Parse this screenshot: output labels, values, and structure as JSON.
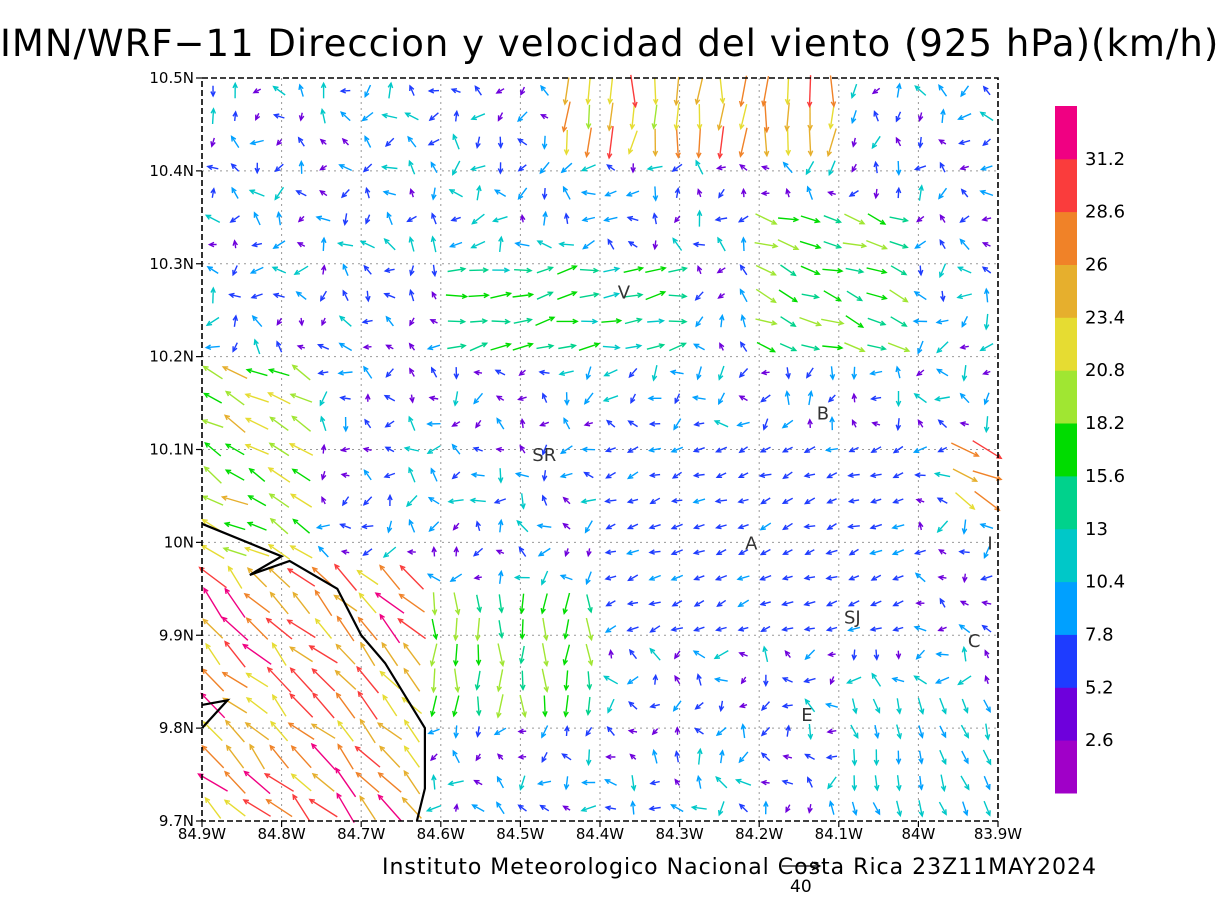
{
  "title": "IMN/WRF−11 Direccion y velocidad del viento (925 hPa)(km/h)",
  "footer": "Instituto Meteorologico Nacional Costa Rica  23Z11MAY2024",
  "reference_vector_label": "40",
  "map": {
    "lon_range": [
      -84.9,
      -83.9
    ],
    "lat_range": [
      9.7,
      10.5
    ],
    "lon_ticks": [
      {
        "value": -84.9,
        "label": "84.9W"
      },
      {
        "value": -84.8,
        "label": "84.8W"
      },
      {
        "value": -84.7,
        "label": "84.7W"
      },
      {
        "value": -84.6,
        "label": "84.6W"
      },
      {
        "value": -84.5,
        "label": "84.5W"
      },
      {
        "value": -84.4,
        "label": "84.4W"
      },
      {
        "value": -84.3,
        "label": "84.3W"
      },
      {
        "value": -84.2,
        "label": "84.2W"
      },
      {
        "value": -84.1,
        "label": "84.1W"
      },
      {
        "value": -84.0,
        "label": "84W"
      },
      {
        "value": -83.9,
        "label": "83.9W"
      }
    ],
    "lat_ticks": [
      {
        "value": 9.7,
        "label": "9.7N"
      },
      {
        "value": 9.8,
        "label": "9.8N"
      },
      {
        "value": 9.9,
        "label": "9.9N"
      },
      {
        "value": 10.0,
        "label": "10N"
      },
      {
        "value": 10.1,
        "label": "10.1N"
      },
      {
        "value": 10.2,
        "label": "10.2N"
      },
      {
        "value": 10.3,
        "label": "10.3N"
      },
      {
        "value": 10.4,
        "label": "10.4N"
      },
      {
        "value": 10.5,
        "label": "10.5N"
      }
    ],
    "places": [
      {
        "label": "V",
        "lon": -84.37,
        "lat": 10.27
      },
      {
        "label": "B",
        "lon": -84.12,
        "lat": 10.14
      },
      {
        "label": "SR",
        "lon": -84.47,
        "lat": 10.095
      },
      {
        "label": "A",
        "lon": -84.21,
        "lat": 10.0
      },
      {
        "label": "I",
        "lon": -83.91,
        "lat": 10.0
      },
      {
        "label": "SJ",
        "lon": -84.083,
        "lat": 9.92
      },
      {
        "label": "C",
        "lon": -83.93,
        "lat": 9.895
      },
      {
        "label": "E",
        "lon": -84.14,
        "lat": 9.815
      }
    ],
    "coastline": [
      [
        -84.9,
        10.02
      ],
      [
        -84.8,
        9.985
      ],
      [
        -84.84,
        9.965
      ],
      [
        -84.79,
        9.98
      ],
      [
        -84.73,
        9.95
      ],
      [
        -84.7,
        9.9
      ],
      [
        -84.67,
        9.87
      ],
      [
        -84.62,
        9.8
      ],
      [
        -84.62,
        9.735
      ],
      [
        -84.63,
        9.7
      ]
    ],
    "coastline_spur": [
      [
        -84.9,
        9.825
      ],
      [
        -84.868,
        9.83
      ],
      [
        -84.9,
        9.8
      ]
    ]
  },
  "colorbar": {
    "labels": [
      "2.6",
      "5.2",
      "7.8",
      "10.4",
      "13",
      "15.6",
      "18.2",
      "20.8",
      "23.4",
      "26",
      "28.6",
      "31.2"
    ],
    "colors": [
      "#a000c8",
      "#6e00dc",
      "#1e3cff",
      "#00a0ff",
      "#00c8c8",
      "#00d28c",
      "#00dc00",
      "#a0e632",
      "#e6dc32",
      "#e6af2d",
      "#f08228",
      "#fa3c3c",
      "#f00082"
    ]
  },
  "chart_data": {
    "type": "vector_field",
    "title": "IMN/WRF−11 Direccion y velocidad del viento (925 hPa)(km/h)",
    "units": "km/h",
    "level": "925 hPa",
    "xlim": [
      -84.9,
      -83.9
    ],
    "ylim": [
      9.7,
      10.5
    ],
    "grid": true,
    "regions": [
      {
        "lon_range": [
          -84.9,
          -84.62
        ],
        "lat_range": [
          9.7,
          9.98
        ],
        "dir_deg": 135,
        "speed_kmh": 27
      },
      {
        "lon_range": [
          -84.9,
          -84.75
        ],
        "lat_range": [
          9.98,
          10.2
        ],
        "dir_deg": 150,
        "speed_kmh": 20
      },
      {
        "lon_range": [
          -84.65,
          -84.4
        ],
        "lat_range": [
          9.8,
          9.95
        ],
        "dir_deg": 270,
        "speed_kmh": 17
      },
      {
        "lon_range": [
          -84.45,
          -84.1
        ],
        "lat_range": [
          10.43,
          10.5
        ],
        "dir_deg": 265,
        "speed_kmh": 25
      },
      {
        "lon_range": [
          -84.6,
          -84.3
        ],
        "lat_range": [
          10.2,
          10.32
        ],
        "dir_deg": 10,
        "speed_kmh": 15
      },
      {
        "lon_range": [
          -84.2,
          -84.0
        ],
        "lat_range": [
          10.2,
          10.35
        ],
        "dir_deg": 340,
        "speed_kmh": 17
      },
      {
        "lon_range": [
          -83.95,
          -83.9
        ],
        "lat_range": [
          10.03,
          10.12
        ],
        "dir_deg": 330,
        "speed_kmh": 27
      },
      {
        "lon_range": [
          -84.4,
          -84.0
        ],
        "lat_range": [
          9.9,
          10.1
        ],
        "dir_deg": 200,
        "speed_kmh": 7
      },
      {
        "lon_range": [
          -84.1,
          -83.9
        ],
        "lat_range": [
          9.7,
          9.85
        ],
        "dir_deg": 285,
        "speed_kmh": 11
      }
    ],
    "reference_vector_kmh": 40,
    "valid_time": "23Z11MAY2024"
  }
}
